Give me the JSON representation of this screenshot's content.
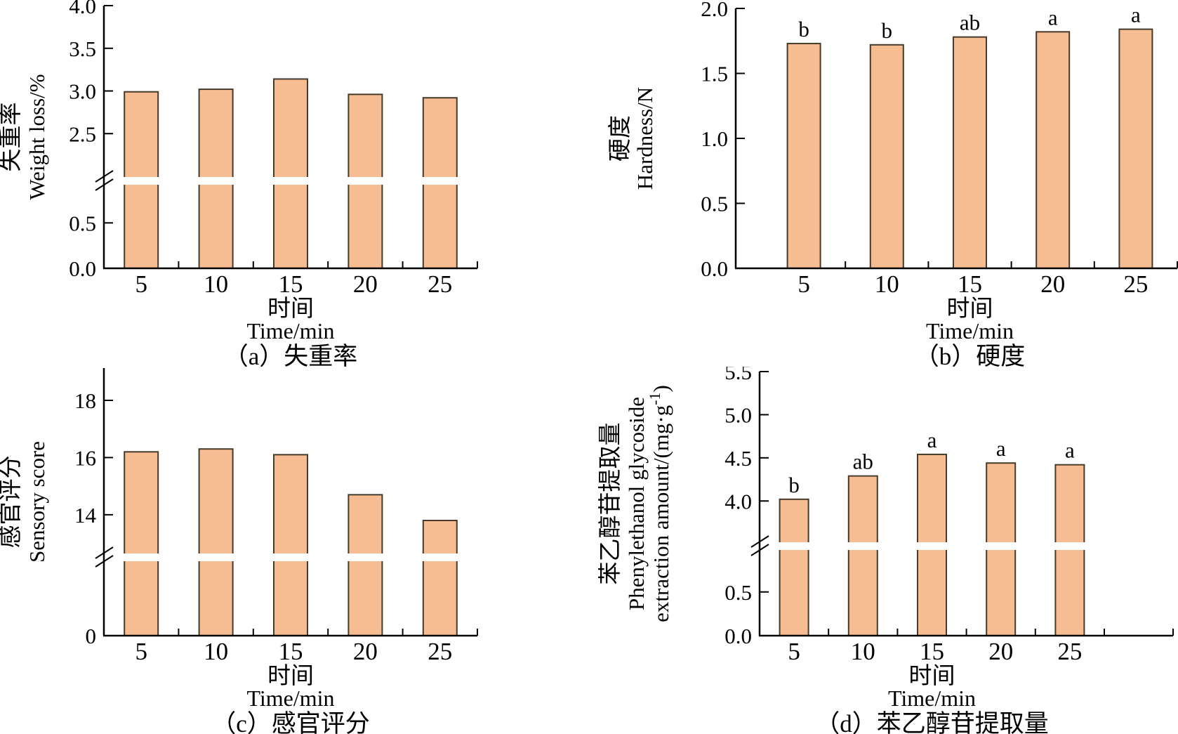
{
  "figure": {
    "layout": "2x2 grid of bar charts",
    "background": "#FFFFFF"
  },
  "style": {
    "bar_fill": "#F6BD92",
    "bar_border": "#463A2B",
    "axis_color": "#000000",
    "text_color": "#000000",
    "break_gap_color": "#FFFFFF"
  },
  "chart_data": [
    {
      "id": "a",
      "type": "bar",
      "caption": "（a）失重率",
      "ylabel_zh": "失重率",
      "ylabel_en": [
        "Weight loss/%"
      ],
      "xlabel_zh": "时间",
      "xlabel_en": "Time/min",
      "categories": [
        "5",
        "10",
        "15",
        "20",
        "25"
      ],
      "values": [
        2.99,
        3.02,
        3.14,
        2.96,
        2.92
      ],
      "letters": null,
      "axis_break": true,
      "y_segments": [
        {
          "range": [
            0,
            0.92
          ],
          "tick_values": [
            0,
            0.5
          ],
          "ticks": [
            "0.0",
            "0.5"
          ]
        },
        {
          "range": [
            2.0,
            4.0
          ],
          "tick_values": [
            2.5,
            3.0,
            3.5,
            4.0
          ],
          "ticks": [
            "2.5",
            "3.0",
            "3.5",
            "4.0"
          ]
        }
      ]
    },
    {
      "id": "b",
      "type": "bar",
      "caption": "（b）硬度",
      "ylabel_zh": "硬度",
      "ylabel_en": [
        "Hardness/N"
      ],
      "xlabel_zh": "时间",
      "xlabel_en": "Time/min",
      "categories": [
        "5",
        "10",
        "15",
        "20",
        "25"
      ],
      "values": [
        1.73,
        1.72,
        1.78,
        1.82,
        1.84
      ],
      "letters": [
        "b",
        "b",
        "ab",
        "a",
        "a"
      ],
      "axis_break": false,
      "y_segments": [
        {
          "range": [
            0,
            2.0
          ],
          "tick_values": [
            0,
            0.5,
            1.0,
            1.5,
            2.0
          ],
          "ticks": [
            "0.0",
            "0.5",
            "1.0",
            "1.5",
            "2.0"
          ]
        }
      ]
    },
    {
      "id": "c",
      "type": "bar",
      "caption": "（c）感官评分",
      "ylabel_zh": "感官评分",
      "ylabel_en": [
        "Sensory score"
      ],
      "xlabel_zh": "时间",
      "xlabel_en": "Time/min",
      "categories": [
        "5",
        "10",
        "15",
        "20",
        "25"
      ],
      "values": [
        16.2,
        16.3,
        16.1,
        14.7,
        13.8
      ],
      "letters": null,
      "axis_break": true,
      "y_segments": [
        {
          "range": [
            0,
            2.6
          ],
          "tick_values": [
            0
          ],
          "ticks": [
            "0"
          ]
        },
        {
          "range": [
            12.67,
            19.13
          ],
          "tick_values": [
            14,
            16,
            18
          ],
          "ticks": [
            "14",
            "16",
            "18"
          ]
        }
      ]
    },
    {
      "id": "d",
      "type": "bar",
      "caption": "（d）苯乙醇苷提取量",
      "ylabel_zh": "苯乙醇苷提取量",
      "ylabel_en": [
        "Phenylethanol glycoside",
        "extraction amount/(mg·g^{-1})"
      ],
      "xlabel_zh": "时间",
      "xlabel_en": "Time/min",
      "categories": [
        "5",
        "10",
        "15",
        "20",
        "25"
      ],
      "values": [
        4.02,
        4.29,
        4.54,
        4.44,
        4.42
      ],
      "letters": [
        "b",
        "ab",
        "a",
        "a",
        "a"
      ],
      "axis_break": true,
      "y_segments": [
        {
          "range": [
            0,
            0.98
          ],
          "tick_values": [
            0,
            0.5
          ],
          "ticks": [
            "0.0",
            "0.5"
          ]
        },
        {
          "range": [
            3.53,
            5.5
          ],
          "tick_values": [
            4.0,
            4.5,
            5.0,
            5.5
          ],
          "ticks": [
            "4.0",
            "4.5",
            "5.0",
            "5.5"
          ]
        }
      ]
    }
  ]
}
